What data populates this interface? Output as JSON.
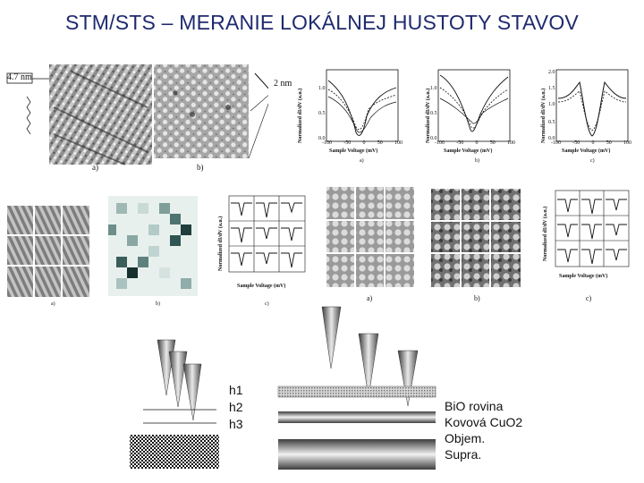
{
  "page": {
    "title": "STM/STS – MERANIE LOKÁLNEJ HUSTOTY STAVOV"
  },
  "top_left": {
    "scale_label_1": "4.7 nm",
    "scale_label_2": "2 nm",
    "caption_a": "a)",
    "caption_b": "b)"
  },
  "spectra_top": {
    "ylabel": "Normalized dI/dV (a.u.)",
    "xlabel": "Sample Voltage (mV)",
    "caption_a": "a)",
    "caption_b": "b)",
    "caption_c": "c)",
    "panel_a_xticks": [
      "-100",
      "-50",
      "0",
      "50",
      "100"
    ],
    "panel_a_yticks": [
      "0.0",
      "0.5",
      "1.0"
    ],
    "panel_b_xticks": [
      "-100",
      "-50",
      "0",
      "50",
      "100"
    ],
    "panel_b_yticks": [
      "0.0",
      "0.5",
      "1.0"
    ],
    "panel_c_xticks": [
      "-100",
      "-50",
      "0",
      "50",
      "100"
    ],
    "panel_c_yticks": [
      "0.0",
      "0.5",
      "1.0",
      "1.5",
      "2.0"
    ]
  },
  "middle": {
    "caption_a1": "a)",
    "caption_b1": "b)",
    "caption_c1": "c)",
    "caption_a2": "a)",
    "caption_b2": "b)",
    "caption_c2": "c)",
    "grid_ylabel": "Normalized dI/dV (a.u.)",
    "grid_xlabel": "Sample Voltage (mV)",
    "grid2_ylabel": "Normalized dI/dV (a.u.)",
    "grid2_xlabel": "Sample Voltage (mV)"
  },
  "diagram": {
    "h_labels": [
      "h1",
      "h2",
      "h3"
    ],
    "layers": [
      "BiO rovina",
      "Kovová CuO2",
      "Objem.",
      "Supra."
    ]
  }
}
